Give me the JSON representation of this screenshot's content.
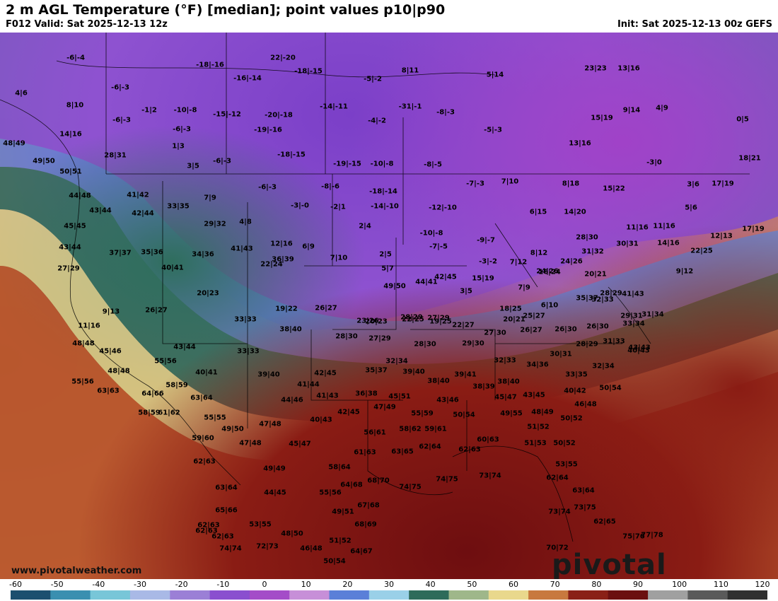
{
  "header": {
    "title": "2 m AGL Temperature (°F) [median]; point values p10|p90",
    "valid": "F012 Valid: Sat 2025-12-13 12z",
    "init": "Init: Sat 2025-12-13 00z GEFS"
  },
  "watermark": {
    "url": "www.pivotalweather.com",
    "brand": "pivotal weather"
  },
  "colorbar": {
    "ticks": [
      "-60",
      "-50",
      "-40",
      "-30",
      "-20",
      "-10",
      "0",
      "10",
      "20",
      "30",
      "40",
      "50",
      "60",
      "70",
      "80",
      "90",
      "100",
      "110",
      "120"
    ],
    "colors": [
      "#1c4f6f",
      "#3a8fb0",
      "#78c6d8",
      "#a9b9e6",
      "#9b7fd6",
      "#8a4fcf",
      "#a44cc8",
      "#c78fd8",
      "#5b7fd8",
      "#9ad0e8",
      "#2e6b5a",
      "#9fb78a",
      "#e9d88c",
      "#c8793e",
      "#8a2016",
      "#6b1010",
      "#a0a0a0",
      "#5a5a5a",
      "#303030"
    ]
  },
  "points": [
    {
      "label": "-6|-4"
    },
    {
      "label": "-18|-16"
    },
    {
      "label": "22|-20"
    },
    {
      "label": "-18|-15"
    },
    {
      "label": "-6|-3"
    },
    {
      "label": "-5|-2"
    },
    {
      "label": "8|11"
    },
    {
      "label": "5|14"
    },
    {
      "label": "23|23"
    },
    {
      "label": "13|16"
    },
    {
      "label": "4|6"
    },
    {
      "label": "-6|-3"
    },
    {
      "label": "-16|-14"
    },
    {
      "label": "8|10"
    },
    {
      "label": "-1|2"
    },
    {
      "label": "-10|-8"
    },
    {
      "label": "-15|-12"
    },
    {
      "label": "-20|-18"
    },
    {
      "label": "-14|-11"
    },
    {
      "label": "-31|-1"
    },
    {
      "label": "-8|-3"
    },
    {
      "label": "15|19"
    },
    {
      "label": "9|14"
    },
    {
      "label": "4|9"
    },
    {
      "label": "0|5"
    },
    {
      "label": "14|16"
    },
    {
      "label": "-6|-3"
    },
    {
      "label": "-19|-16"
    },
    {
      "label": "-4|-2"
    },
    {
      "label": "-5|-3"
    },
    {
      "label": "48|49"
    },
    {
      "label": "13|16"
    },
    {
      "label": "49|50"
    },
    {
      "label": "28|31"
    },
    {
      "label": "1|3"
    },
    {
      "label": "-18|-15"
    },
    {
      "label": "-19|-15"
    },
    {
      "label": "-10|-8"
    },
    {
      "label": "-8|-5"
    },
    {
      "label": "-3|0"
    },
    {
      "label": "18|21"
    },
    {
      "label": "50|51"
    },
    {
      "label": "3|5"
    },
    {
      "label": "-6|-3"
    },
    {
      "label": "-7|-3"
    },
    {
      "label": "7|10"
    },
    {
      "label": "8|18"
    },
    {
      "label": "15|22"
    },
    {
      "label": "3|6"
    },
    {
      "label": "17|19"
    },
    {
      "label": "44|48"
    },
    {
      "label": "41|42"
    },
    {
      "label": "7|9"
    },
    {
      "label": "-6|-3"
    },
    {
      "label": "-8|-6"
    },
    {
      "label": "-18|-14"
    },
    {
      "label": "-3|-0"
    },
    {
      "label": "-2|1"
    },
    {
      "label": "-14|-10"
    },
    {
      "label": "-12|-10"
    },
    {
      "label": "43|44"
    },
    {
      "label": "42|44"
    },
    {
      "label": "33|35"
    },
    {
      "label": "6|15"
    },
    {
      "label": "14|20"
    },
    {
      "label": "5|6"
    },
    {
      "label": "45|45"
    },
    {
      "label": "29|32"
    },
    {
      "label": "4|8"
    },
    {
      "label": "2|4"
    },
    {
      "label": "-10|-8"
    },
    {
      "label": "11|16"
    },
    {
      "label": "11|16"
    },
    {
      "label": "17|19"
    },
    {
      "label": "12|13"
    },
    {
      "label": "43|44"
    },
    {
      "label": "12|16"
    },
    {
      "label": "6|9"
    },
    {
      "label": "-9|-7"
    },
    {
      "label": "28|30"
    },
    {
      "label": "14|16"
    },
    {
      "label": "37|37"
    },
    {
      "label": "35|36"
    },
    {
      "label": "34|36"
    },
    {
      "label": "-7|-5"
    },
    {
      "label": "2|5"
    },
    {
      "label": "31|32"
    },
    {
      "label": "30|31"
    },
    {
      "label": "22|25"
    },
    {
      "label": "40|41"
    },
    {
      "label": "41|43"
    },
    {
      "label": "22|24"
    },
    {
      "label": "36|39"
    },
    {
      "label": "7|10"
    },
    {
      "label": "-3|-2"
    },
    {
      "label": "8|12"
    },
    {
      "label": "24|26"
    },
    {
      "label": "24|26"
    },
    {
      "label": "20|21"
    },
    {
      "label": "27|29"
    },
    {
      "label": "5|7"
    },
    {
      "label": "7|12"
    },
    {
      "label": "16|24"
    },
    {
      "label": "20|23"
    },
    {
      "label": "49|50"
    },
    {
      "label": "44|41"
    },
    {
      "label": "42|45"
    },
    {
      "label": "15|19"
    },
    {
      "label": "9|12"
    },
    {
      "label": "7|9"
    },
    {
      "label": "3|5"
    },
    {
      "label": "9|13"
    },
    {
      "label": "26|27"
    },
    {
      "label": "19|22"
    },
    {
      "label": "26|27"
    },
    {
      "label": "18|25"
    },
    {
      "label": "6|10"
    },
    {
      "label": "35|37"
    },
    {
      "label": "28|29"
    },
    {
      "label": "41|43"
    },
    {
      "label": "31|34"
    },
    {
      "label": "23|26"
    },
    {
      "label": "28|29"
    },
    {
      "label": "27|29"
    },
    {
      "label": "20|21"
    },
    {
      "label": "32|33"
    },
    {
      "label": "11|16"
    },
    {
      "label": "25|27"
    },
    {
      "label": "33|33"
    },
    {
      "label": "43|43"
    },
    {
      "label": "20|23"
    },
    {
      "label": "22|25"
    },
    {
      "label": "19|25"
    },
    {
      "label": "29|31"
    },
    {
      "label": "33|34"
    },
    {
      "label": "38|40"
    },
    {
      "label": "22|27"
    },
    {
      "label": "26|27"
    },
    {
      "label": "26|30"
    },
    {
      "label": "26|30"
    },
    {
      "label": "48|48"
    },
    {
      "label": "28|30"
    },
    {
      "label": "27|29"
    },
    {
      "label": "27|30"
    },
    {
      "label": "28|29"
    },
    {
      "label": "31|33"
    },
    {
      "label": "43|44"
    },
    {
      "label": "28|30"
    },
    {
      "label": "29|30"
    },
    {
      "label": "40|43"
    },
    {
      "label": "45|46"
    },
    {
      "label": "33|33"
    },
    {
      "label": "30|31"
    },
    {
      "label": "55|56"
    },
    {
      "label": "32|34"
    },
    {
      "label": "32|33"
    },
    {
      "label": "34|36"
    },
    {
      "label": "32|34"
    },
    {
      "label": "48|48"
    },
    {
      "label": "40|41"
    },
    {
      "label": "42|45"
    },
    {
      "label": "35|37"
    },
    {
      "label": "39|40"
    },
    {
      "label": "39|41"
    },
    {
      "label": "39|40"
    },
    {
      "label": "33|35"
    },
    {
      "label": "55|56"
    },
    {
      "label": "58|59"
    },
    {
      "label": "41|44"
    },
    {
      "label": "38|39"
    },
    {
      "label": "38|40"
    },
    {
      "label": "38|40"
    },
    {
      "label": "40|42"
    },
    {
      "label": "50|54"
    },
    {
      "label": "63|63"
    },
    {
      "label": "64|66"
    },
    {
      "label": "36|38"
    },
    {
      "label": "45|51"
    },
    {
      "label": "43|46"
    },
    {
      "label": "45|47"
    },
    {
      "label": "43|45"
    },
    {
      "label": "63|64"
    },
    {
      "label": "44|46"
    },
    {
      "label": "41|43"
    },
    {
      "label": "47|49"
    },
    {
      "label": "46|48"
    },
    {
      "label": "58|59"
    },
    {
      "label": "61|62"
    },
    {
      "label": "55|55"
    },
    {
      "label": "42|45"
    },
    {
      "label": "55|59"
    },
    {
      "label": "50|54"
    },
    {
      "label": "49|55"
    },
    {
      "label": "48|49"
    },
    {
      "label": "47|48"
    },
    {
      "label": "40|43"
    },
    {
      "label": "50|52"
    },
    {
      "label": "49|50"
    },
    {
      "label": "56|61"
    },
    {
      "label": "58|62"
    },
    {
      "label": "59|61"
    },
    {
      "label": "51|52"
    },
    {
      "label": "59|60"
    },
    {
      "label": "47|48"
    },
    {
      "label": "45|47"
    },
    {
      "label": "60|63"
    },
    {
      "label": "51|53"
    },
    {
      "label": "50|52"
    },
    {
      "label": "62|64"
    },
    {
      "label": "62|63"
    },
    {
      "label": "63|65"
    },
    {
      "label": "61|63"
    },
    {
      "label": "62|63"
    },
    {
      "label": "49|49"
    },
    {
      "label": "58|64"
    },
    {
      "label": "53|55"
    },
    {
      "label": "73|74"
    },
    {
      "label": "62|64"
    },
    {
      "label": "63|64"
    },
    {
      "label": "64|68"
    },
    {
      "label": "68|70"
    },
    {
      "label": "74|75"
    },
    {
      "label": "74|75"
    },
    {
      "label": "44|45"
    },
    {
      "label": "55|56"
    },
    {
      "label": "63|64"
    },
    {
      "label": "65|66"
    },
    {
      "label": "73|75"
    },
    {
      "label": "62|63"
    },
    {
      "label": "53|55"
    },
    {
      "label": "49|51"
    },
    {
      "label": "67|68"
    },
    {
      "label": "73|74"
    },
    {
      "label": "62|65"
    },
    {
      "label": "62|63"
    },
    {
      "label": "75|76"
    },
    {
      "label": "68|69"
    },
    {
      "label": "62|63"
    },
    {
      "label": "48|50"
    },
    {
      "label": "77|78"
    },
    {
      "label": "74|74"
    },
    {
      "label": "72|73"
    },
    {
      "label": "46|48"
    },
    {
      "label": "51|52"
    },
    {
      "label": "64|67"
    },
    {
      "label": "70|72"
    },
    {
      "label": "50|54"
    }
  ]
}
